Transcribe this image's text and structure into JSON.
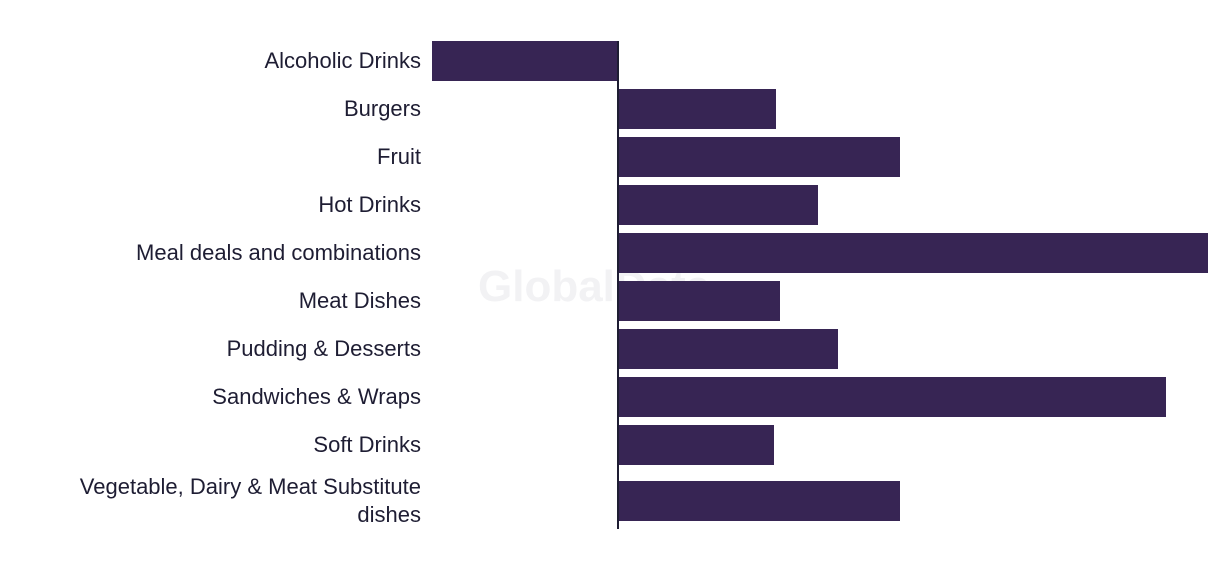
{
  "chart_data": {
    "type": "bar",
    "orientation": "horizontal",
    "watermark": "GlobalData",
    "categories": [
      "Alcoholic Drinks",
      "Burgers",
      "Fruit",
      "Hot Drinks",
      "Meal deals and combinations",
      "Meat Dishes",
      "Pudding & Desserts",
      "Sandwiches & Wraps",
      "Soft Drinks",
      "Vegetable, Dairy & Meat Substitute dishes"
    ],
    "values": [
      -1.86,
      1.58,
      2.82,
      2.0,
      5.9,
      1.62,
      2.2,
      5.48,
      1.56,
      2.82
    ],
    "color": "#372554",
    "xlim": [
      -1.86,
      5.9
    ]
  }
}
